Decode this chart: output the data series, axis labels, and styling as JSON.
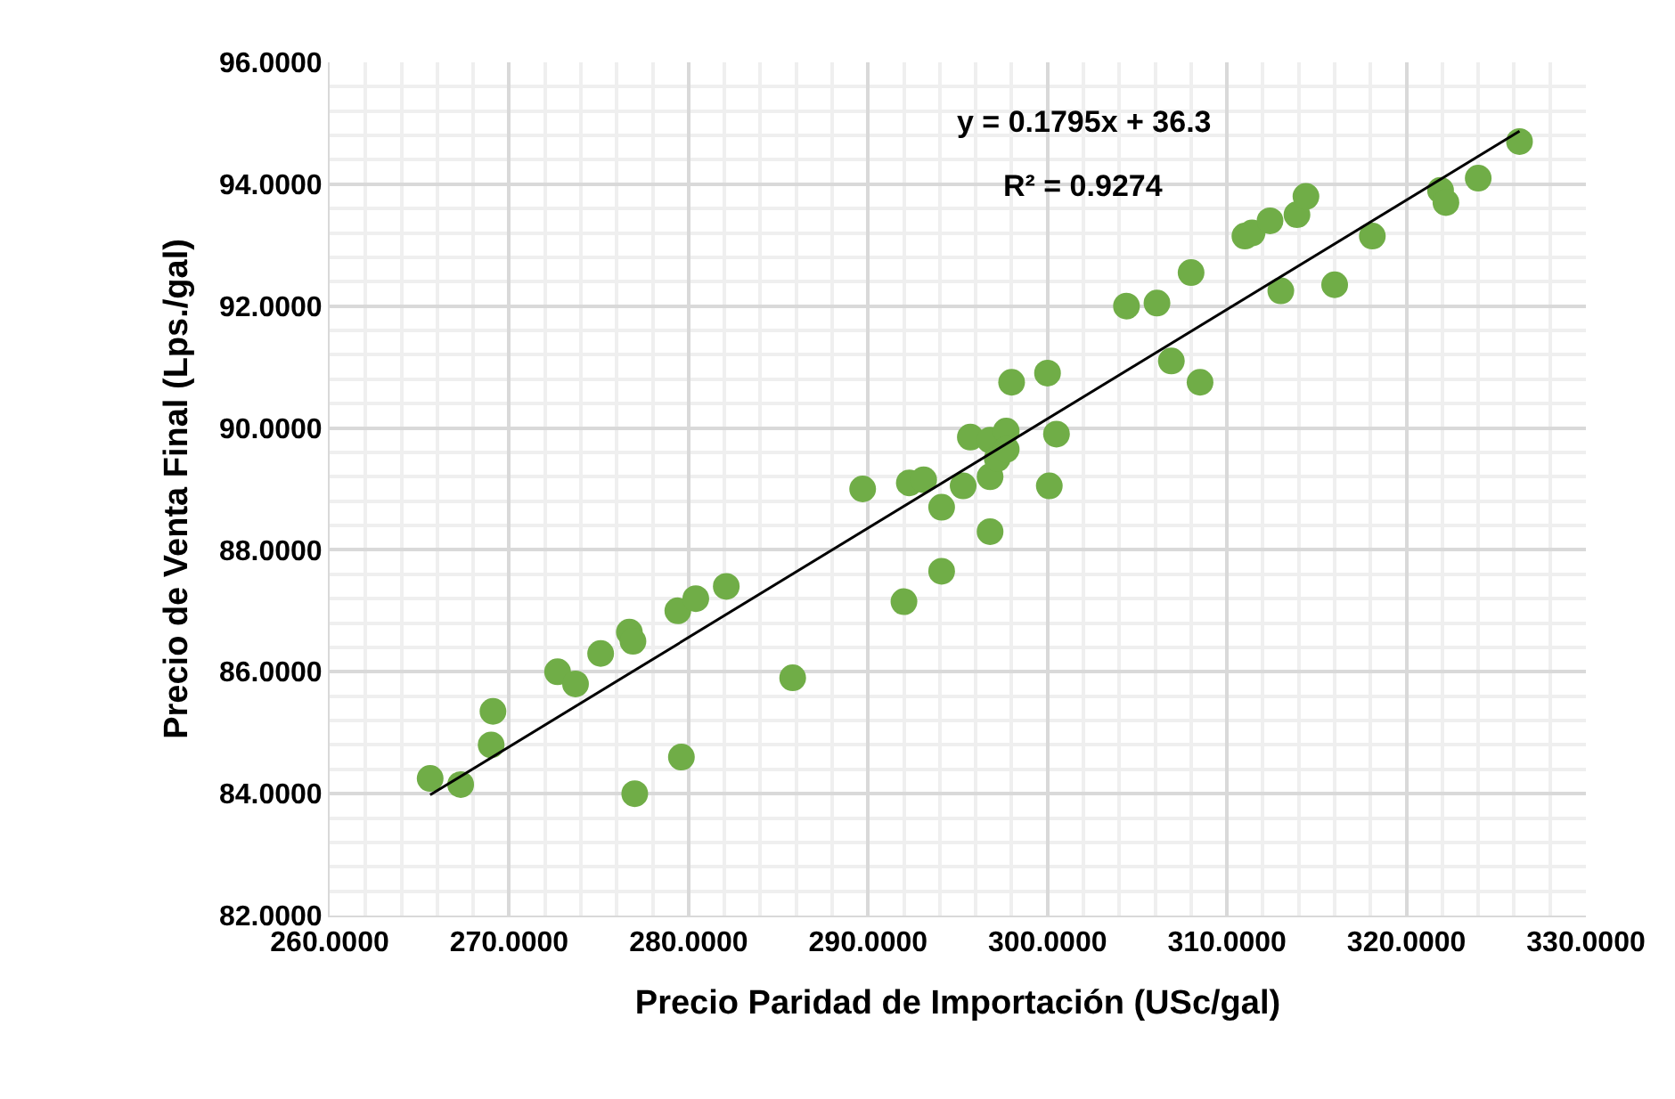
{
  "chart_data": {
    "type": "scatter",
    "xlabel": "Precio Paridad de Importación (USc/gal)",
    "ylabel": "Precio de Venta Final (Lps./gal)",
    "annotations": [
      "y = 0.1795x + 36.3",
      "R² = 0.9274"
    ],
    "xlim": [
      260,
      330
    ],
    "xticks": [
      {
        "value": 260,
        "label": "260.0000"
      },
      {
        "value": 270,
        "label": "270.0000"
      },
      {
        "value": 280,
        "label": "280.0000"
      },
      {
        "value": 290,
        "label": "290.0000"
      },
      {
        "value": 300,
        "label": "300.0000"
      },
      {
        "value": 310,
        "label": "310.0000"
      },
      {
        "value": 320,
        "label": "320.0000"
      },
      {
        "value": 330,
        "label": "330.0000"
      }
    ],
    "ylim": [
      82,
      96
    ],
    "yticks": [
      {
        "value": 82,
        "label": "82.0000"
      },
      {
        "value": 84,
        "label": "84.0000"
      },
      {
        "value": 86,
        "label": "86.0000"
      },
      {
        "value": 88,
        "label": "88.0000"
      },
      {
        "value": 90,
        "label": "90.0000"
      },
      {
        "value": 92,
        "label": "92.0000"
      },
      {
        "value": 94,
        "label": "94.0000"
      },
      {
        "value": 96,
        "label": "96.0000"
      }
    ],
    "grid": true,
    "series": [
      {
        "marker": "circle",
        "color": "#70ad47",
        "x": [
          265.6,
          267.3,
          269.0,
          269.1,
          272.7,
          273.7,
          275.1,
          276.7,
          276.9,
          277.0,
          279.6,
          279.4,
          280.4,
          282.1,
          285.8,
          289.7,
          292.0,
          292.3,
          293.1,
          294.1,
          294.1,
          295.3,
          295.7,
          296.8,
          296.8,
          296.8,
          297.2,
          297.7,
          297.7,
          298.0,
          300.0,
          300.1,
          300.5,
          304.4,
          306.1,
          308.0,
          306.9,
          308.5,
          311.0,
          311.4,
          312.4,
          313.0,
          313.9,
          314.4,
          316.0,
          318.1,
          321.9,
          322.2,
          324.0,
          326.3
        ],
        "values": [
          84.25,
          84.15,
          84.8,
          85.35,
          86.0,
          85.8,
          86.3,
          86.65,
          86.5,
          84.0,
          84.6,
          87.0,
          87.2,
          87.4,
          85.9,
          89.0,
          87.15,
          89.1,
          89.15,
          87.65,
          88.7,
          89.05,
          89.85,
          89.8,
          89.2,
          88.3,
          89.5,
          89.95,
          89.65,
          90.75,
          90.9,
          89.05,
          89.9,
          92.0,
          92.05,
          92.55,
          91.1,
          90.75,
          93.15,
          93.2,
          93.4,
          92.25,
          93.5,
          93.8,
          92.35,
          93.15,
          93.9,
          93.7,
          94.1,
          94.7
        ]
      },
      {
        "type": "line",
        "color": "#000000",
        "x": [
          265.6,
          326.3
        ],
        "values": [
          83.98,
          94.87
        ]
      }
    ]
  }
}
